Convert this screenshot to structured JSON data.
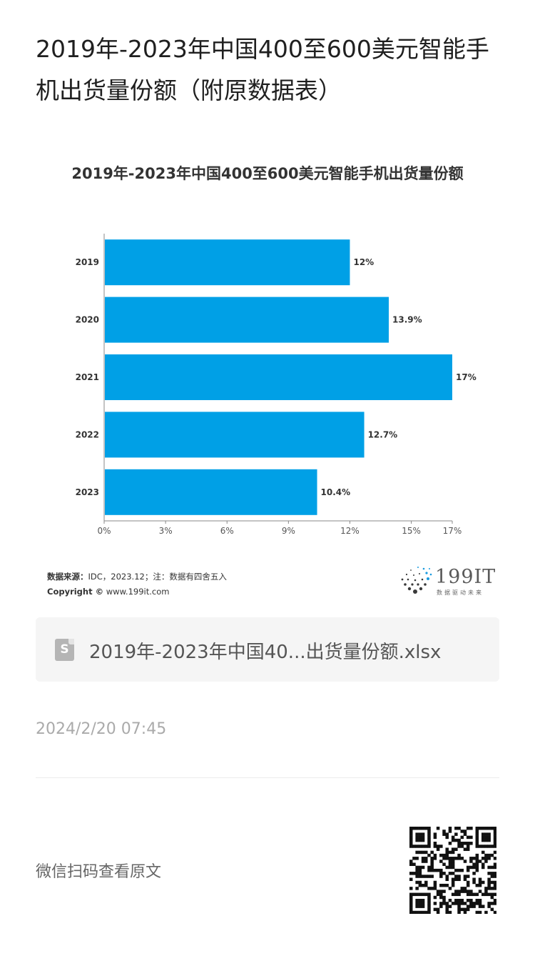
{
  "page": {
    "title": "2019年-2023年中国400至600美元智能手机出货量份额（附原数据表）"
  },
  "chart_data": {
    "type": "bar",
    "orientation": "horizontal",
    "title": "2019年-2023年中国400至600美元智能手机出货量份额",
    "categories": [
      "2019",
      "2020",
      "2021",
      "2022",
      "2023"
    ],
    "values": [
      12,
      13.9,
      17,
      12.7,
      10.4
    ],
    "value_labels": [
      "12%",
      "13.9%",
      "17%",
      "12.7%",
      "10.4%"
    ],
    "x_ticks": [
      0,
      3,
      6,
      9,
      12,
      15,
      17
    ],
    "x_tick_labels": [
      "0%",
      "3%",
      "6%",
      "9%",
      "12%",
      "15%",
      "17%"
    ],
    "xlim": [
      0,
      17
    ],
    "xlabel": "",
    "ylabel": "",
    "grid": false,
    "bar_color": "#00a0e6"
  },
  "source": {
    "label": "数据来源：",
    "text": "IDC，2023.12；注：数据有四舍五入",
    "copyright_label": "Copyright ©",
    "copyright_text": "www.199it.com"
  },
  "logo": {
    "text": "199IT",
    "subtitle": "数据驱动未来"
  },
  "file": {
    "icon": "spreadsheet-file-icon",
    "icon_letter": "S",
    "name": "2019年-2023年中国40...出货量份额.xlsx"
  },
  "timestamp": "2024/2/20 07:45",
  "qr": {
    "label": "微信扫码查看原文",
    "icon": "qr-code-icon"
  }
}
